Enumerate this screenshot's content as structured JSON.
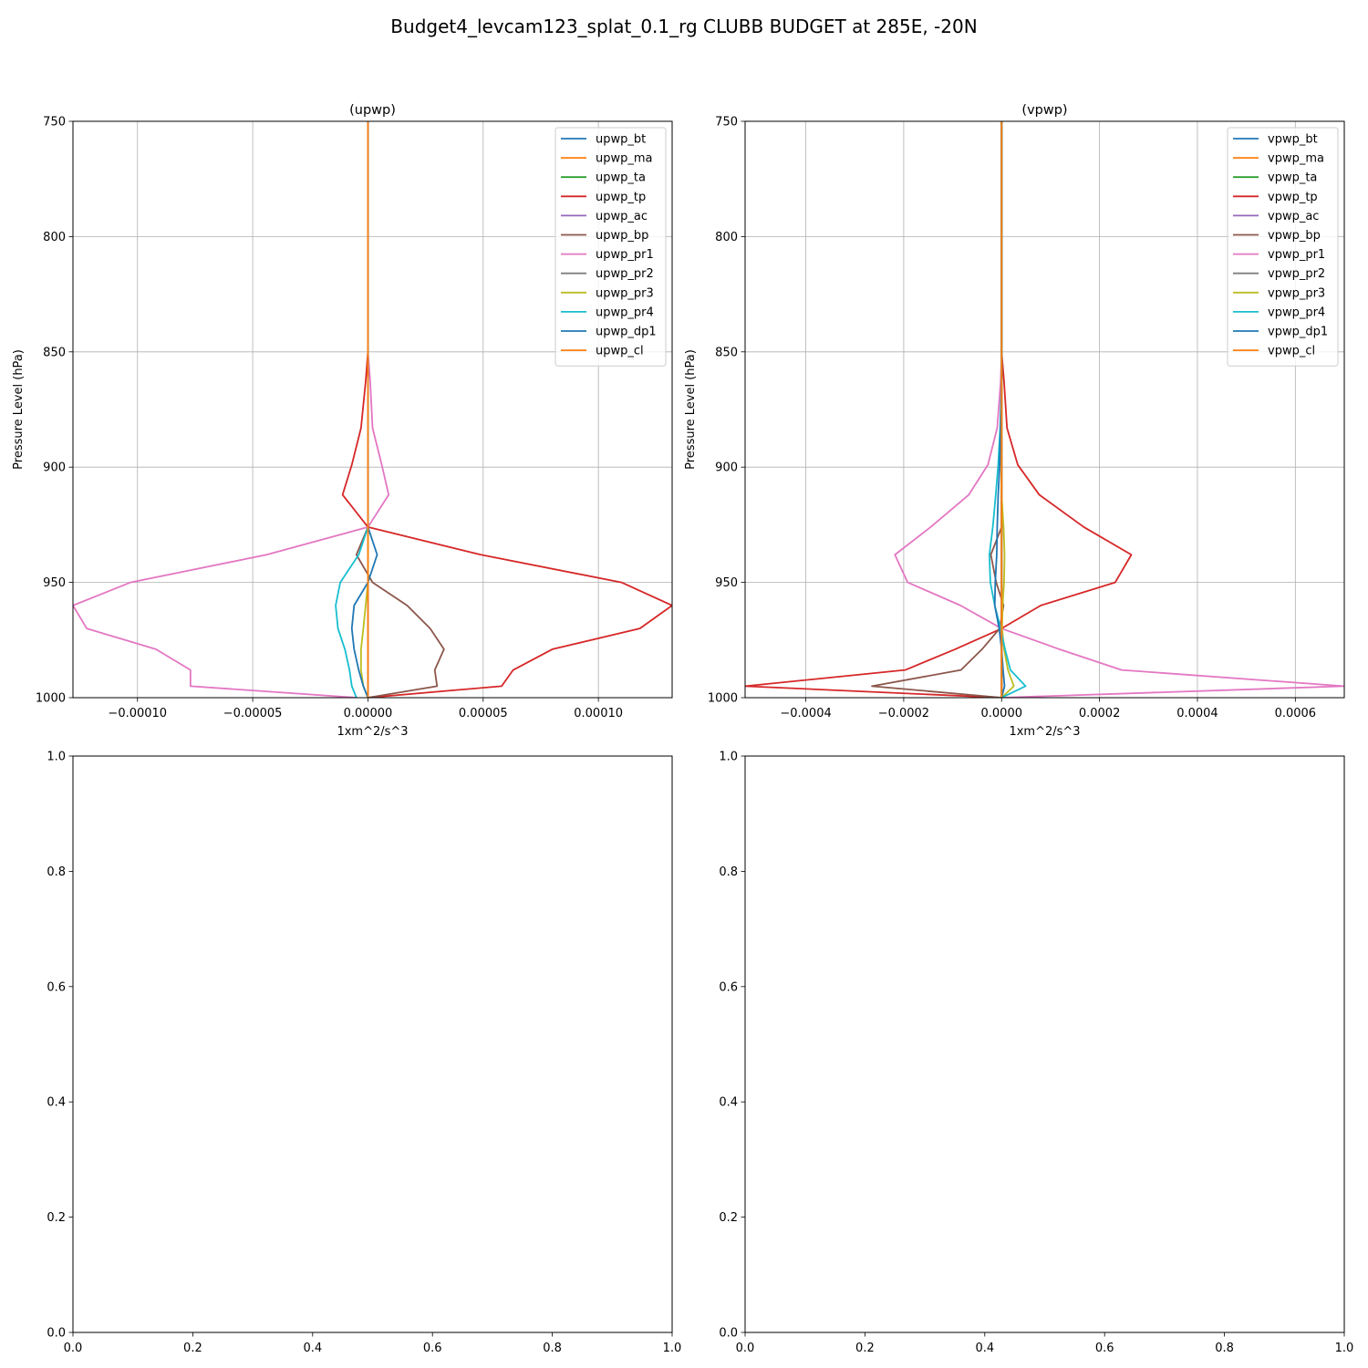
{
  "figure": {
    "title": "Budget4_levcam123_splat_0.1_rg CLUBB BUDGET at 285E, -20N"
  },
  "chart_data": [
    {
      "type": "line",
      "title": "(upwp)",
      "xlabel": "1xm^2/s^3",
      "ylabel": "Pressure Level (hPa)",
      "xlim": [
        -0.000128,
        0.000132
      ],
      "ylim": [
        750,
        1000
      ],
      "y_inverted": true,
      "grid": true,
      "legend": "top-right",
      "xticks": [
        -0.0001,
        -5e-05,
        0.0,
        5e-05,
        0.0001
      ],
      "xtick_labels": [
        "−0.00010",
        "−0.00005",
        "0.00000",
        "0.00005",
        "0.00010"
      ],
      "yticks": [
        750,
        800,
        850,
        900,
        950,
        1000
      ],
      "ytick_labels": [
        "750",
        "800",
        "850",
        "900",
        "950",
        "1000"
      ],
      "levels": [
        750,
        800,
        850,
        863,
        883,
        899,
        912,
        926,
        938,
        950,
        960,
        970,
        979,
        988,
        995,
        1000
      ],
      "series": [
        {
          "name": "upwp_bt",
          "color": "#1f77b4",
          "values": [
            0,
            0,
            0,
            0,
            0,
            0,
            0,
            0,
            0,
            0,
            0,
            0,
            0,
            0,
            0,
            0
          ]
        },
        {
          "name": "upwp_ma",
          "color": "#ff7f0e",
          "values": [
            0,
            0,
            0,
            0,
            0,
            0,
            0,
            0,
            0,
            0,
            0,
            0,
            0,
            0,
            0,
            0
          ]
        },
        {
          "name": "upwp_ta",
          "color": "#2ca02c",
          "values": [
            0,
            0,
            0,
            0,
            0,
            0,
            0,
            0,
            0,
            0,
            0,
            0,
            0,
            0,
            0,
            0
          ]
        },
        {
          "name": "upwp_tp",
          "color": "#d62728",
          "values": [
            0,
            0,
            0,
            -1e-06,
            -3e-06,
            -7e-06,
            -1.1e-05,
            0,
            4.9e-05,
            0.00011,
            0.000132,
            0.000118,
            8e-05,
            6.3e-05,
            5.8e-05,
            0
          ]
        },
        {
          "name": "upwp_ac",
          "color": "#9467bd",
          "values": [
            0,
            0,
            0,
            0,
            0,
            0,
            0,
            0,
            0,
            0,
            0,
            0,
            0,
            0,
            0,
            0
          ]
        },
        {
          "name": "upwp_bp",
          "color": "#8c564b",
          "values": [
            0,
            0,
            0,
            0,
            0,
            0,
            0,
            0,
            -5e-06,
            2e-06,
            1.7e-05,
            2.7e-05,
            3.3e-05,
            2.9e-05,
            3e-05,
            0
          ]
        },
        {
          "name": "upwp_pr1",
          "color": "#e377c2",
          "values": [
            0,
            0,
            0,
            1e-06,
            2e-06,
            6e-06,
            9e-06,
            0,
            -4.4e-05,
            -0.000103,
            -0.000128,
            -0.000122,
            -9.2e-05,
            -7.7e-05,
            -7.7e-05,
            -5e-06
          ]
        },
        {
          "name": "upwp_pr2",
          "color": "#7f7f7f",
          "values": [
            0,
            0,
            0,
            0,
            0,
            0,
            0,
            0,
            0,
            0,
            0,
            0,
            0,
            0,
            0,
            0
          ]
        },
        {
          "name": "upwp_pr3",
          "color": "#bcbd22",
          "values": [
            0,
            0,
            0,
            0,
            0,
            0,
            0,
            0,
            0,
            0,
            -1e-06,
            -2e-06,
            -3e-06,
            -3e-06,
            -2e-06,
            0
          ]
        },
        {
          "name": "upwp_pr4",
          "color": "#17becf",
          "values": [
            0,
            0,
            0,
            0,
            0,
            0,
            0,
            0,
            -4e-06,
            -1.2e-05,
            -1.4e-05,
            -1.3e-05,
            -1e-05,
            -8e-06,
            -7e-06,
            -5e-06
          ]
        },
        {
          "name": "upwp_dp1",
          "color": "#1f77b4",
          "values": [
            0,
            0,
            0,
            0,
            0,
            0,
            0,
            0,
            4e-06,
            0,
            -6e-06,
            -7e-06,
            -6e-06,
            -4e-06,
            -2e-06,
            0
          ]
        },
        {
          "name": "upwp_cl",
          "color": "#ff7f0e",
          "values": [
            0,
            0,
            0,
            0,
            0,
            0,
            0,
            0,
            0,
            0,
            0,
            0,
            0,
            0,
            0,
            0
          ]
        }
      ]
    },
    {
      "type": "line",
      "title": "(vpwp)",
      "xlabel": "1xm^2/s^3",
      "ylabel": "Pressure Level (hPa)",
      "xlim": [
        -0.000524,
        0.0007
      ],
      "ylim": [
        750,
        1000
      ],
      "y_inverted": true,
      "grid": true,
      "legend": "top-right",
      "xticks": [
        -0.0004,
        -0.0002,
        0.0,
        0.0002,
        0.0004,
        0.0006
      ],
      "xtick_labels": [
        "−0.0004",
        "−0.0002",
        "0.0000",
        "0.0002",
        "0.0004",
        "0.0006"
      ],
      "yticks": [
        750,
        800,
        850,
        900,
        950,
        1000
      ],
      "ytick_labels": [
        "750",
        "800",
        "850",
        "900",
        "950",
        "1000"
      ],
      "levels": [
        750,
        800,
        850,
        863,
        883,
        899,
        912,
        926,
        938,
        950,
        960,
        970,
        979,
        988,
        995,
        1000
      ],
      "series": [
        {
          "name": "vpwp_bt",
          "color": "#1f77b4",
          "values": [
            0,
            0,
            0,
            0,
            0,
            0,
            0,
            0,
            0,
            0,
            0,
            0,
            0,
            0,
            0,
            0
          ]
        },
        {
          "name": "vpwp_ma",
          "color": "#ff7f0e",
          "values": [
            0,
            0,
            0,
            0,
            0,
            0,
            0,
            0,
            0,
            0,
            0,
            0,
            0,
            0,
            0,
            0
          ]
        },
        {
          "name": "vpwp_ta",
          "color": "#2ca02c",
          "values": [
            0,
            0,
            0,
            0,
            0,
            0,
            0,
            0,
            0,
            0,
            0,
            0,
            0,
            0,
            0,
            0
          ]
        },
        {
          "name": "vpwp_tp",
          "color": "#d62728",
          "values": [
            0,
            0,
            0,
            5e-06,
            1.1e-05,
            3.3e-05,
            7.7e-05,
            0.000168,
            0.000265,
            0.000232,
            8e-05,
            0,
            -9.5e-05,
            -0.000197,
            -0.000524,
            0
          ]
        },
        {
          "name": "vpwp_ac",
          "color": "#9467bd",
          "values": [
            0,
            0,
            0,
            0,
            0,
            0,
            0,
            0,
            0,
            0,
            0,
            0,
            0,
            0,
            0,
            0
          ]
        },
        {
          "name": "vpwp_bp",
          "color": "#8c564b",
          "values": [
            0,
            0,
            0,
            0,
            0,
            0,
            0,
            0,
            -2.2e-05,
            -1.1e-05,
            4e-06,
            -4e-06,
            -4e-05,
            -8.3e-05,
            -0.000265,
            0
          ]
        },
        {
          "name": "vpwp_pr1",
          "color": "#e377c2",
          "values": [
            0,
            0,
            0,
            -2e-06,
            -9e-06,
            -2.8e-05,
            -6.7e-05,
            -0.000145,
            -0.000218,
            -0.000192,
            -8.4e-05,
            0,
            0.000118,
            0.000245,
            0.0007,
            0
          ]
        },
        {
          "name": "vpwp_pr2",
          "color": "#7f7f7f",
          "values": [
            0,
            0,
            0,
            0,
            0,
            0,
            0,
            0,
            0,
            0,
            0,
            0,
            0,
            0,
            0,
            0
          ]
        },
        {
          "name": "vpwp_pr3",
          "color": "#bcbd22",
          "values": [
            0,
            0,
            0,
            0,
            0,
            0,
            0,
            4e-06,
            6e-06,
            5e-06,
            2e-06,
            1e-06,
            5e-06,
            1.3e-05,
            2.5e-05,
            0
          ]
        },
        {
          "name": "vpwp_pr4",
          "color": "#17becf",
          "values": [
            0,
            0,
            0,
            0,
            -3e-06,
            -7e-06,
            -1.2e-05,
            -1.8e-05,
            -2.5e-05,
            -2.3e-05,
            -1.4e-05,
            -2e-06,
            7e-06,
            1.8e-05,
            4.9e-05,
            0
          ]
        },
        {
          "name": "vpwp_dp1",
          "color": "#1f77b4",
          "values": [
            0,
            0,
            0,
            0,
            -2e-06,
            -4e-06,
            -7e-06,
            -9e-06,
            -1e-05,
            -1.3e-05,
            -1.4e-05,
            -5e-06,
            0,
            3e-06,
            6e-06,
            0
          ]
        },
        {
          "name": "vpwp_cl",
          "color": "#ff7f0e",
          "values": [
            0,
            0,
            0,
            0,
            0,
            0,
            0,
            0,
            0,
            0,
            0,
            0,
            0,
            0,
            0,
            0
          ]
        }
      ]
    },
    {
      "type": "line",
      "title": "",
      "xlim": [
        0,
        1
      ],
      "ylim": [
        0,
        1
      ],
      "y_inverted": false,
      "grid": false,
      "xticks": [
        0,
        0.2,
        0.4,
        0.6,
        0.8,
        1.0
      ],
      "xtick_labels": [
        "0.0",
        "0.2",
        "0.4",
        "0.6",
        "0.8",
        "1.0"
      ],
      "yticks": [
        0,
        0.2,
        0.4,
        0.6,
        0.8,
        1.0
      ],
      "ytick_labels": [
        "0.0",
        "0.2",
        "0.4",
        "0.6",
        "0.8",
        "1.0"
      ],
      "series": []
    },
    {
      "type": "line",
      "title": "",
      "xlim": [
        0,
        1
      ],
      "ylim": [
        0,
        1
      ],
      "y_inverted": false,
      "grid": false,
      "xticks": [
        0,
        0.2,
        0.4,
        0.6,
        0.8,
        1.0
      ],
      "xtick_labels": [
        "0.0",
        "0.2",
        "0.4",
        "0.6",
        "0.8",
        "1.0"
      ],
      "yticks": [
        0,
        0.2,
        0.4,
        0.6,
        0.8,
        1.0
      ],
      "ytick_labels": [
        "0.0",
        "0.2",
        "0.4",
        "0.6",
        "0.8",
        "1.0"
      ],
      "series": []
    }
  ]
}
